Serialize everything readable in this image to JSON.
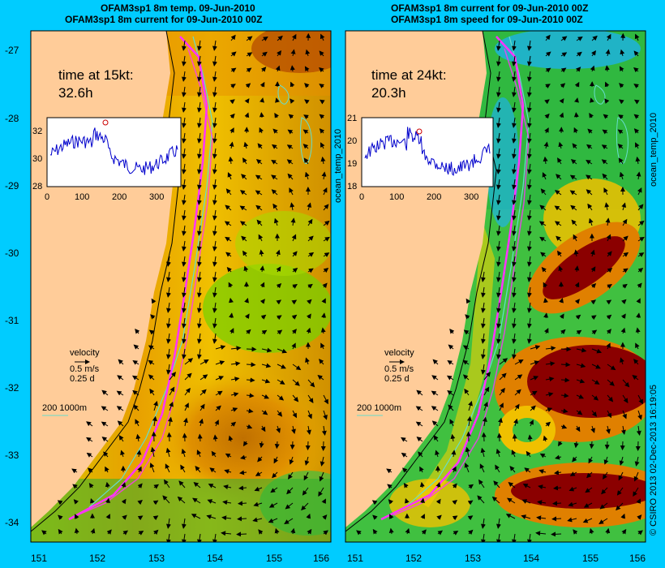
{
  "left_panel": {
    "title_line1": "OFAM3sp1 8m temp. 09-Jun-2010",
    "title_line2": "OFAM3sp1 8m current for 09-Jun-2010 00Z",
    "time_label": "time at 15kt:",
    "time_value": "32.6h",
    "inset": {
      "y_ticks": [
        "32",
        "30",
        "28"
      ],
      "x_ticks": [
        "0",
        "100",
        "200",
        "300"
      ],
      "ylim": [
        28,
        33
      ]
    },
    "velocity_label": "velocity",
    "velocity_speed": "0.5 m/s",
    "velocity_days": "0.25 d",
    "depth_legend": "200  1000m",
    "side_label": "ocean_temp_2010"
  },
  "right_panel": {
    "title_line1": "OFAM3sp1 8m current for 09-Jun-2010 00Z",
    "title_line2": "OFAM3sp1 8m speed for 09-Jun-2010 00Z",
    "time_label": "time at 24kt:",
    "time_value": "20.3h",
    "inset": {
      "y_ticks": [
        "21",
        "20",
        "19",
        "18"
      ],
      "x_ticks": [
        "0",
        "100",
        "200",
        "300"
      ],
      "ylim": [
        18,
        21
      ]
    },
    "velocity_label": "velocity",
    "velocity_speed": "0.5 m/s",
    "velocity_days": "0.25 d",
    "depth_legend": "200  1000m",
    "side_label": "ocean_temp_2010"
  },
  "axes": {
    "lat_ticks": [
      "-27",
      "-28",
      "-29",
      "-30",
      "-31",
      "-32",
      "-33",
      "-34"
    ],
    "lon_ticks": [
      "151",
      "152",
      "153",
      "154",
      "155",
      "156"
    ]
  },
  "footer_credit": "© CSIRO 2013   02-Dec-2013 16:19:05",
  "colors": {
    "background": "#00ccff",
    "land": "#ffcc99",
    "route": "#ff33ff",
    "contour": "#66ddcc",
    "series": "#0000cc"
  }
}
